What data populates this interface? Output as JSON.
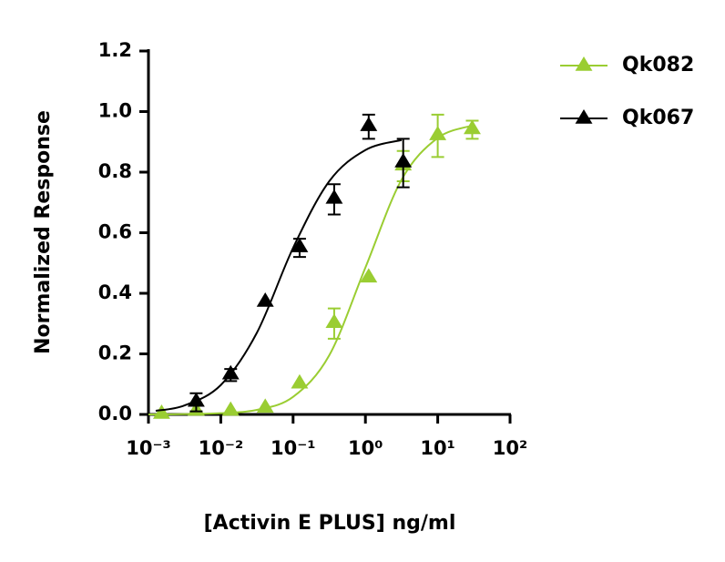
{
  "chart_data": {
    "type": "scatter",
    "x_label": "[Activin E PLUS] ng/ml",
    "y_label": "Normalized Response",
    "xscale": "log",
    "xlim": [
      0.001,
      100
    ],
    "xticks": [
      {
        "value": 0.001,
        "label": "10⁻³"
      },
      {
        "value": 0.01,
        "label": "10⁻²"
      },
      {
        "value": 0.1,
        "label": "10⁻¹"
      },
      {
        "value": 1,
        "label": "10⁰"
      },
      {
        "value": 10,
        "label": "10¹"
      },
      {
        "value": 100,
        "label": "10²"
      }
    ],
    "ylim": [
      0,
      1.2
    ],
    "yticks": [
      {
        "value": 0,
        "label": "0.0"
      },
      0.2,
      0.4,
      0.6,
      0.8,
      {
        "value": 1,
        "label": "1.0"
      },
      1.2
    ],
    "legend": "top-right",
    "series": [
      {
        "name": "Qk082",
        "color": "#9acd32",
        "x": [
          0.00152,
          0.00457,
          0.0137,
          0.0412,
          0.123,
          0.37,
          1.11,
          3.33,
          10,
          30
        ],
        "values": [
          0.0,
          0.01,
          0.01,
          0.02,
          0.1,
          0.3,
          0.45,
          0.82,
          0.92,
          0.94
        ],
        "errors": [
          null,
          null,
          null,
          null,
          null,
          0.05,
          null,
          0.05,
          0.07,
          0.03
        ],
        "curve": {
          "x": [
            0.001,
            0.00316,
            0.01,
            0.0316,
            0.1,
            0.316,
            1,
            3.16,
            10,
            31.6
          ],
          "values": [
            0.0,
            0.001,
            0.004,
            0.015,
            0.058,
            0.195,
            0.485,
            0.775,
            0.913,
            0.955
          ]
        }
      },
      {
        "name": "Qk067",
        "color": "#000000",
        "x": [
          0.00457,
          0.0137,
          0.0412,
          0.123,
          0.37,
          1.11,
          3.33
        ],
        "values": [
          0.04,
          0.13,
          0.37,
          0.55,
          0.71,
          0.95,
          0.83
        ],
        "errors": [
          0.03,
          0.02,
          null,
          0.03,
          0.05,
          0.04,
          0.08
        ],
        "curve": {
          "x": [
            0.00126,
            0.00316,
            0.01,
            0.0316,
            0.1,
            0.316,
            1,
            3.16
          ],
          "values": [
            0.012,
            0.03,
            0.097,
            0.27,
            0.55,
            0.77,
            0.873,
            0.906
          ]
        }
      }
    ]
  }
}
